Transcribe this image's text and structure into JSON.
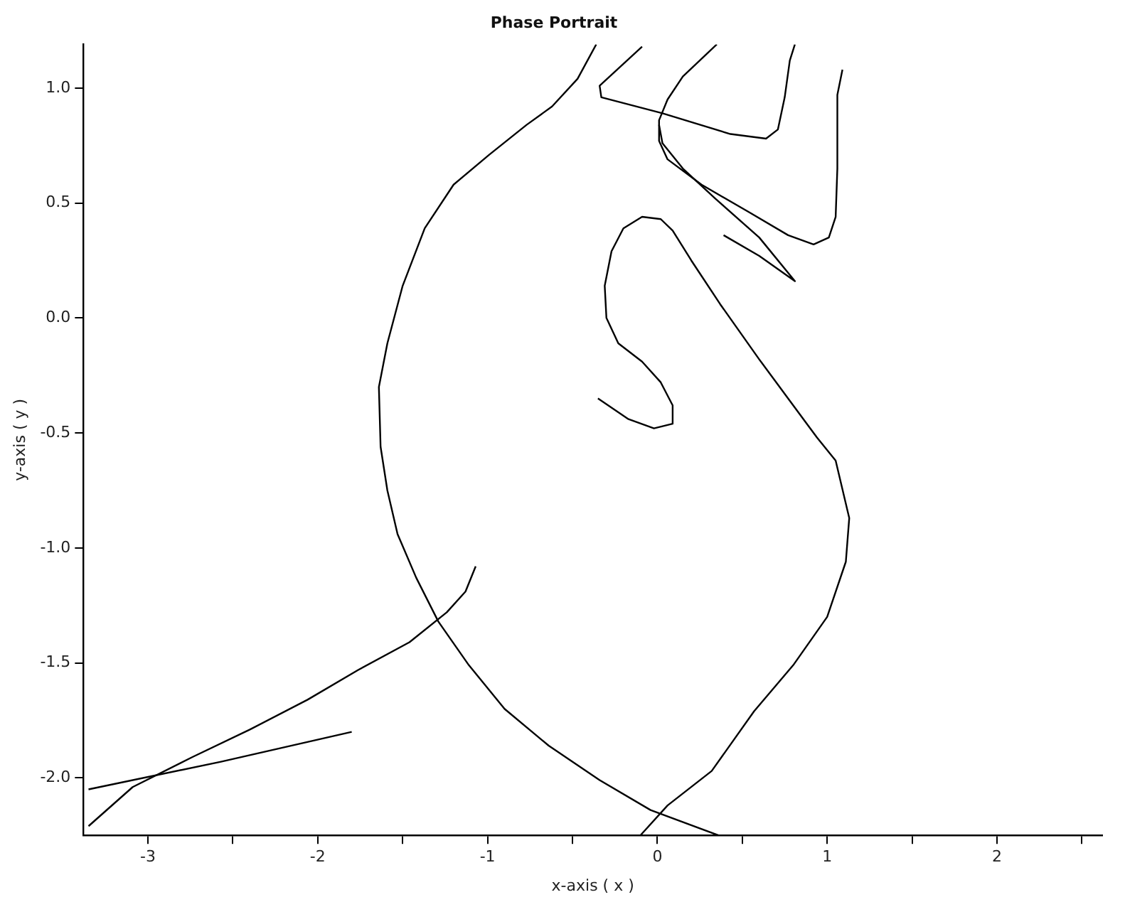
{
  "chart_data": {
    "type": "line",
    "title": "Phase Portrait",
    "xlabel": "x-axis ( x )",
    "ylabel": "y-axis ( y )",
    "xlim": [
      -3.38,
      2.62
    ],
    "ylim": [
      -2.25,
      1.19
    ],
    "xticks": [
      -3,
      {
        "value": -2.5,
        "label": null
      },
      -2,
      {
        "value": -1.5,
        "label": null
      },
      -1,
      {
        "value": -0.5,
        "label": null
      },
      0,
      {
        "value": 0.5,
        "label": null
      },
      1,
      {
        "value": 1.5,
        "label": null
      },
      2,
      {
        "value": 2.5,
        "label": null
      }
    ],
    "yticks": [
      {
        "value": -2,
        "label": "-2.0"
      },
      -1.5,
      {
        "value": -1,
        "label": "-1.0"
      },
      -0.5,
      {
        "value": 0,
        "label": "0.0"
      },
      0.5,
      {
        "value": 1,
        "label": "1.0"
      }
    ],
    "grid": false,
    "legend": false,
    "marker": "none",
    "line_style": "solid",
    "series": [
      {
        "color": "#000000",
        "x": [
          -0.36,
          -0.47,
          -0.62,
          -0.77,
          -0.99,
          -1.2,
          -1.37,
          -1.5,
          -1.59,
          -1.64,
          -1.63,
          -1.59,
          -1.53,
          -1.42,
          -1.29,
          -1.11,
          -0.9,
          -0.64,
          -0.34,
          -0.04,
          0.36
        ],
        "values": [
          1.19,
          1.04,
          0.92,
          0.84,
          0.71,
          0.58,
          0.39,
          0.14,
          -0.11,
          -0.3,
          -0.56,
          -0.75,
          -0.94,
          -1.13,
          -1.32,
          -1.51,
          -1.7,
          -1.86,
          -2.01,
          -2.14,
          -2.25
        ]
      },
      {
        "color": "#000000",
        "x": [
          -1.07,
          -1.13,
          -1.24,
          -1.46,
          -1.76,
          -2.06,
          -2.4,
          -2.74,
          -3.09,
          -3.35
        ],
        "values": [
          -1.08,
          -1.19,
          -1.28,
          -1.41,
          -1.53,
          -1.66,
          -1.79,
          -1.91,
          -2.04,
          -2.21
        ]
      },
      {
        "color": "#000000",
        "x": [
          -1.8,
          -2.57,
          -3.35
        ],
        "values": [
          -1.8,
          -1.93,
          -2.05
        ]
      },
      {
        "color": "#000000",
        "x": [
          -0.09,
          -0.34,
          -0.33,
          0.03,
          0.43,
          0.64,
          0.71,
          0.75,
          0.78,
          0.81
        ],
        "values": [
          1.18,
          1.01,
          0.96,
          0.89,
          0.8,
          0.78,
          0.82,
          0.96,
          1.12,
          1.19
        ]
      },
      {
        "color": "#000000",
        "x": [
          0.35,
          0.15,
          0.06,
          0.01,
          0.01,
          0.06,
          0.26,
          0.54,
          0.77,
          0.92,
          1.01,
          1.05,
          1.06,
          1.06,
          1.09
        ],
        "values": [
          1.19,
          1.05,
          0.95,
          0.86,
          0.77,
          0.69,
          0.58,
          0.46,
          0.36,
          0.32,
          0.35,
          0.44,
          0.65,
          0.97,
          1.08
        ]
      },
      {
        "color": "#000000",
        "x": [
          0.01,
          0.03,
          0.15,
          0.34,
          0.6,
          0.81,
          0.6,
          0.39
        ],
        "values": [
          0.84,
          0.76,
          0.65,
          0.52,
          0.35,
          0.16,
          0.27,
          0.36
        ]
      },
      {
        "color": "#000000",
        "x": [
          -0.35,
          -0.17,
          -0.02,
          0.09,
          0.09,
          0.02,
          -0.09,
          -0.23,
          -0.3,
          -0.31,
          -0.27,
          -0.2,
          -0.09,
          0.02,
          0.09,
          0.2,
          0.37,
          0.6,
          0.83,
          0.94,
          1.05,
          1.13,
          1.11,
          1.0,
          0.8,
          0.57,
          0.32,
          0.06,
          -0.1
        ],
        "values": [
          -0.35,
          -0.44,
          -0.48,
          -0.46,
          -0.38,
          -0.28,
          -0.19,
          -0.11,
          0.0,
          0.14,
          0.29,
          0.39,
          0.44,
          0.43,
          0.38,
          0.25,
          0.06,
          -0.18,
          -0.41,
          -0.52,
          -0.62,
          -0.87,
          -1.06,
          -1.3,
          -1.51,
          -1.71,
          -1.97,
          -2.12,
          -2.25
        ]
      }
    ]
  }
}
